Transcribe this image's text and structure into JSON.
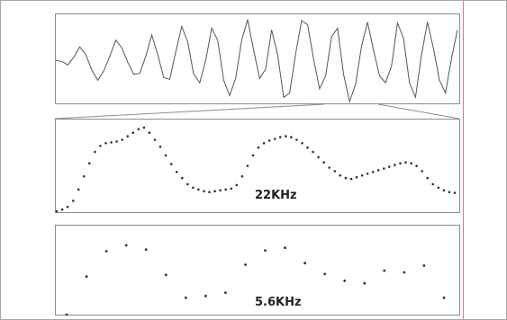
{
  "figure": {
    "colors": {
      "frame": "#a8a8a8",
      "panel_border": "#8c8c8c",
      "waveform": "#555555",
      "dots": "#333333",
      "marker_line": "#e07a82"
    }
  },
  "panels": [
    {
      "id": "waveform",
      "label": "",
      "samples": [
        0.48,
        0.47,
        0.43,
        0.52,
        0.64,
        0.55,
        0.37,
        0.25,
        0.36,
        0.53,
        0.72,
        0.63,
        0.46,
        0.32,
        0.33,
        0.53,
        0.78,
        0.55,
        0.28,
        0.26,
        0.58,
        0.88,
        0.7,
        0.32,
        0.22,
        0.48,
        0.86,
        0.72,
        0.25,
        0.07,
        0.27,
        0.72,
        0.96,
        0.6,
        0.27,
        0.38,
        0.84,
        0.55,
        0.05,
        0.1,
        0.56,
        0.95,
        0.9,
        0.5,
        0.15,
        0.3,
        0.76,
        0.86,
        0.32,
        0.0,
        0.2,
        0.65,
        0.93,
        0.6,
        0.3,
        0.22,
        0.42,
        0.92,
        0.74,
        0.22,
        0.05,
        0.55,
        0.93,
        0.62,
        0.25,
        0.1,
        0.5,
        0.84
      ]
    },
    {
      "id": "dots-22khz",
      "label": "22KHz",
      "samples": [
        0.0,
        0.02,
        0.05,
        0.12,
        0.25,
        0.4,
        0.55,
        0.68,
        0.75,
        0.78,
        0.79,
        0.8,
        0.82,
        0.86,
        0.9,
        0.94,
        0.96,
        0.9,
        0.82,
        0.74,
        0.64,
        0.54,
        0.45,
        0.38,
        0.31,
        0.27,
        0.25,
        0.23,
        0.22,
        0.23,
        0.24,
        0.25,
        0.26,
        0.3,
        0.4,
        0.52,
        0.64,
        0.73,
        0.78,
        0.81,
        0.83,
        0.85,
        0.86,
        0.85,
        0.82,
        0.78,
        0.73,
        0.68,
        0.62,
        0.56,
        0.5,
        0.46,
        0.41,
        0.38,
        0.37,
        0.39,
        0.41,
        0.43,
        0.45,
        0.47,
        0.49,
        0.51,
        0.53,
        0.55,
        0.56,
        0.55,
        0.52,
        0.46,
        0.38,
        0.31,
        0.27,
        0.24,
        0.22,
        0.21
      ]
    },
    {
      "id": "dots-5_6khz",
      "label": "5.6KHz",
      "samples": [
        0.0,
        0.45,
        0.75,
        0.82,
        0.77,
        0.47,
        0.2,
        0.22,
        0.26,
        0.59,
        0.76,
        0.79,
        0.61,
        0.48,
        0.4,
        0.37,
        0.52,
        0.5,
        0.58,
        0.2
      ]
    }
  ]
}
